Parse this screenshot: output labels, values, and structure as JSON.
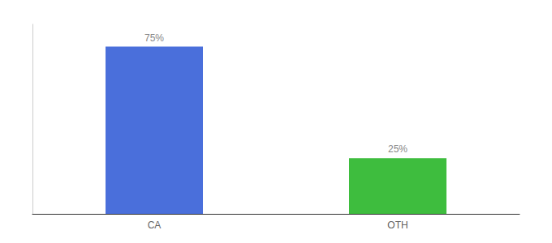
{
  "chart_data": {
    "type": "bar",
    "categories": [
      "CA",
      "OTH"
    ],
    "values": [
      75,
      25
    ],
    "value_labels": [
      "75%",
      "25%"
    ],
    "colors": [
      "#4a6fdb",
      "#3ebd3e"
    ],
    "ylim": [
      0,
      85
    ],
    "data_labels": true,
    "tick_labels": "x",
    "grid": false
  }
}
